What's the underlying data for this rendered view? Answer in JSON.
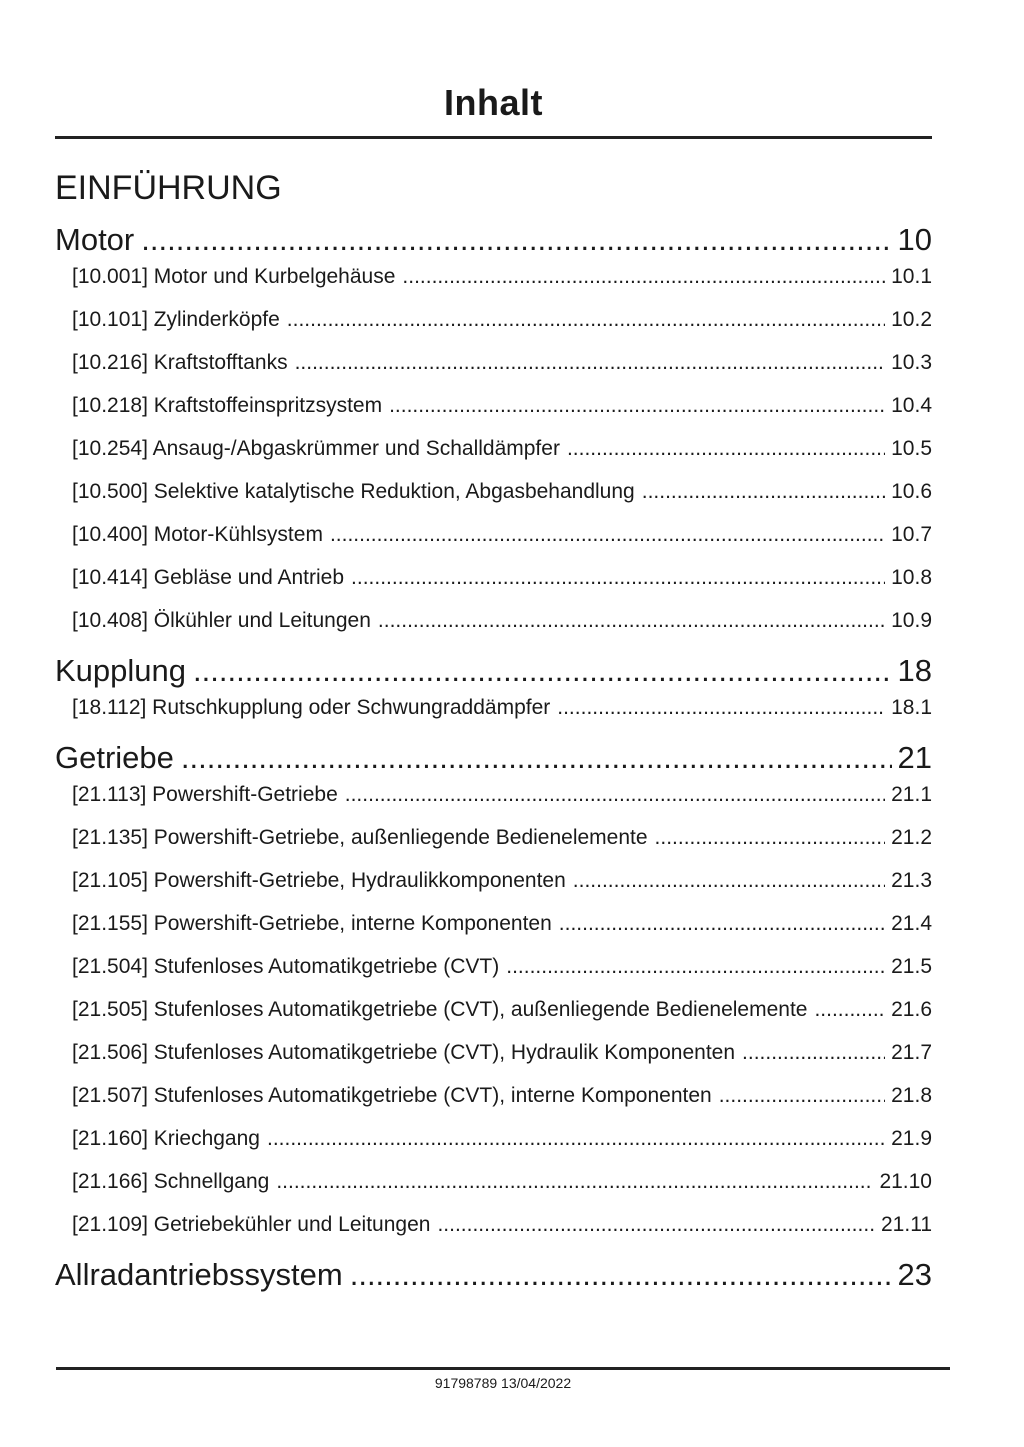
{
  "header": {
    "title": "Inhalt"
  },
  "colors": {
    "text": "#1a1a1a",
    "rule": "#222222",
    "background": "#ffffff"
  },
  "toc": {
    "intro_heading": "EINFÜHRUNG",
    "sections": [
      {
        "label": "Motor",
        "page": "10",
        "entries": [
          {
            "label": "[10.001] Motor und Kurbelgehäuse",
            "page": "10.1"
          },
          {
            "label": "[10.101] Zylinderköpfe",
            "page": "10.2"
          },
          {
            "label": "[10.216] Kraftstofftanks",
            "page": "10.3"
          },
          {
            "label": "[10.218] Kraftstoffeinspritzsystem",
            "page": "10.4"
          },
          {
            "label": "[10.254] Ansaug-/Abgaskrümmer und Schalldämpfer",
            "page": "10.5"
          },
          {
            "label": "[10.500] Selektive katalytische Reduktion, Abgasbehandlung",
            "page": "10.6"
          },
          {
            "label": "[10.400] Motor-Kühlsystem",
            "page": "10.7"
          },
          {
            "label": "[10.414] Gebläse und Antrieb",
            "page": "10.8"
          },
          {
            "label": "[10.408] Ölkühler und Leitungen",
            "page": "10.9"
          }
        ]
      },
      {
        "label": "Kupplung",
        "page": "18",
        "entries": [
          {
            "label": "[18.112] Rutschkupplung oder Schwungraddämpfer",
            "page": "18.1"
          }
        ]
      },
      {
        "label": "Getriebe",
        "page": "21",
        "entries": [
          {
            "label": "[21.113] Powershift-Getriebe",
            "page": "21.1"
          },
          {
            "label": "[21.135] Powershift-Getriebe, außenliegende Bedienelemente",
            "page": "21.2"
          },
          {
            "label": "[21.105] Powershift-Getriebe, Hydraulikkomponenten",
            "page": "21.3"
          },
          {
            "label": "[21.155] Powershift-Getriebe, interne Komponenten",
            "page": "21.4"
          },
          {
            "label": "[21.504] Stufenloses Automatikgetriebe (CVT)",
            "page": "21.5"
          },
          {
            "label": "[21.505] Stufenloses Automatikgetriebe (CVT), außenliegende Bedienelemente",
            "page": "21.6"
          },
          {
            "label": "[21.506] Stufenloses Automatikgetriebe (CVT), Hydraulik Komponenten",
            "page": "21.7"
          },
          {
            "label": "[21.507] Stufenloses Automatikgetriebe (CVT), interne Komponenten",
            "page": "21.8"
          },
          {
            "label": "[21.160] Kriechgang",
            "page": "21.9"
          },
          {
            "label": "[21.166] Schnellgang",
            "page": "21.10"
          },
          {
            "label": "[21.109] Getriebekühler und Leitungen",
            "page": "21.11"
          }
        ]
      },
      {
        "label": "Allradantriebssystem",
        "page": "23",
        "entries": []
      }
    ]
  },
  "footer": {
    "text": "91798789 13/04/2022"
  }
}
